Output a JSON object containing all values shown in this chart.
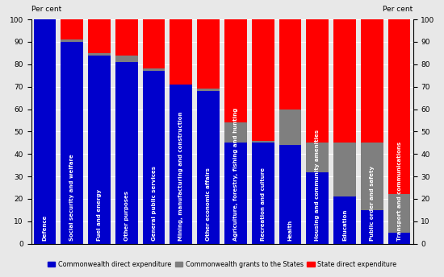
{
  "categories": [
    "Defence",
    "Social security and welfare",
    "Fuel and energy",
    "Other purposes",
    "General public services",
    "Mining, manufacturing and construction",
    "Other economic affairs",
    "Agriculture, forestry, fishing and hunting",
    "Recreation and culture",
    "Health",
    "Housing and community amenities",
    "Education",
    "Public order and safety",
    "Transport and communications"
  ],
  "commonwealth_direct": [
    100,
    90,
    84,
    81,
    77,
    71,
    68,
    45,
    45,
    44,
    32,
    21,
    15,
    5
  ],
  "commonwealth_grants": [
    0,
    1,
    1,
    3,
    1,
    0,
    1,
    9,
    1,
    16,
    13,
    24,
    30,
    17
  ],
  "state_direct": [
    0,
    9,
    15,
    16,
    22,
    29,
    31,
    46,
    54,
    40,
    55,
    55,
    55,
    78
  ],
  "color_commonwealth_direct": "#0000cc",
  "color_commonwealth_grants": "#7f7f7f",
  "color_state_direct": "#ff0000",
  "ylabel_left": "Per cent",
  "ylabel_right": "Per cent",
  "ylim": [
    0,
    100
  ],
  "yticks": [
    0,
    10,
    20,
    30,
    40,
    50,
    60,
    70,
    80,
    90,
    100
  ],
  "legend_labels": [
    "Commonwealth direct expenditure",
    "Commonwealth grants to the States",
    "State direct expenditure"
  ],
  "background_color": "#e8e8e8",
  "grid_color": "#ffffff",
  "label_fontsize": 5.0,
  "tick_fontsize": 6.5,
  "ylabel_fontsize": 6.5
}
